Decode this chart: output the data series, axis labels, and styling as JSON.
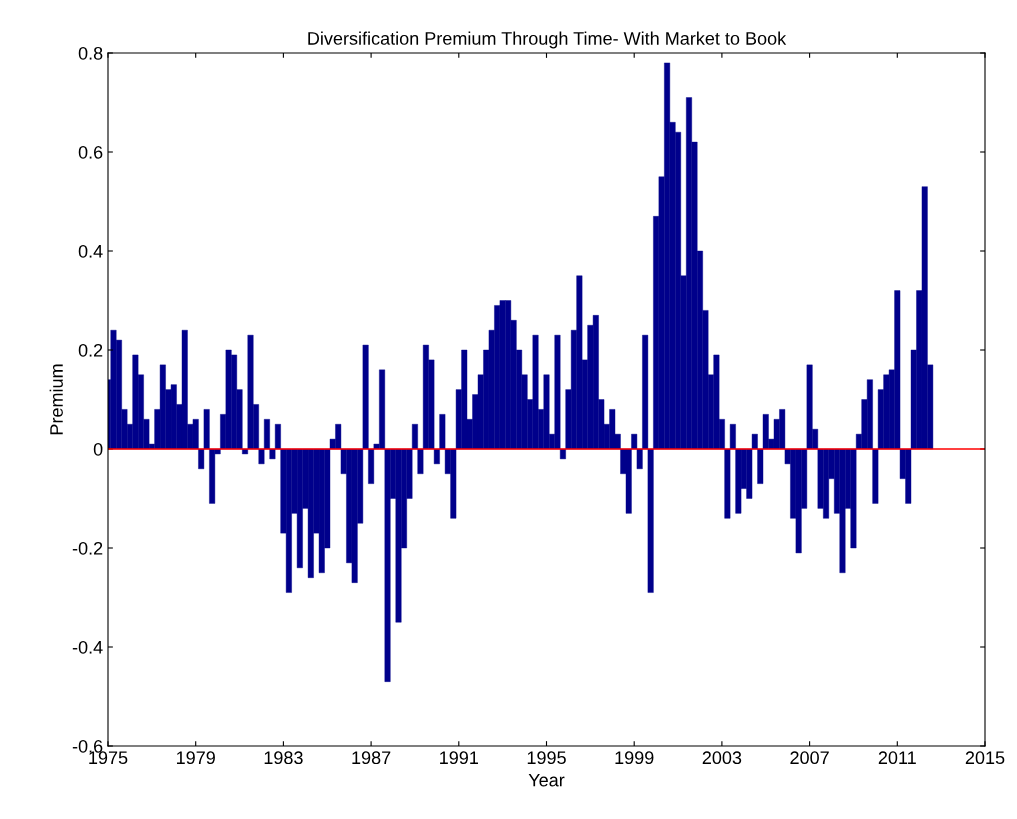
{
  "chart_data": {
    "type": "bar",
    "title": "Diversification Premium Through Time- With Market to Book",
    "xlabel": "Year",
    "ylabel": "Premium",
    "x": [
      1975.0,
      1975.25,
      1975.5,
      1975.75,
      1976.0,
      1976.25,
      1976.5,
      1976.75,
      1977.0,
      1977.25,
      1977.5,
      1977.75,
      1978.0,
      1978.25,
      1978.5,
      1978.75,
      1979.0,
      1979.25,
      1979.5,
      1979.75,
      1980.0,
      1980.25,
      1980.5,
      1980.75,
      1981.0,
      1981.25,
      1981.5,
      1981.75,
      1982.0,
      1982.25,
      1982.5,
      1982.75,
      1983.0,
      1983.25,
      1983.5,
      1983.75,
      1984.0,
      1984.25,
      1984.5,
      1984.75,
      1985.0,
      1985.25,
      1985.5,
      1985.75,
      1986.0,
      1986.25,
      1986.5,
      1986.75,
      1987.0,
      1987.25,
      1987.5,
      1987.75,
      1988.0,
      1988.25,
      1988.5,
      1988.75,
      1989.0,
      1989.25,
      1989.5,
      1989.75,
      1990.0,
      1990.25,
      1990.5,
      1990.75,
      1991.0,
      1991.25,
      1991.5,
      1991.75,
      1992.0,
      1992.25,
      1992.5,
      1992.75,
      1993.0,
      1993.25,
      1993.5,
      1993.75,
      1994.0,
      1994.25,
      1994.5,
      1994.75,
      1995.0,
      1995.25,
      1995.5,
      1995.75,
      1996.0,
      1996.25,
      1996.5,
      1996.75,
      1997.0,
      1997.25,
      1997.5,
      1997.75,
      1998.0,
      1998.25,
      1998.5,
      1998.75,
      1999.0,
      1999.25,
      1999.5,
      1999.75,
      2000.0,
      2000.25,
      2000.5,
      2000.75,
      2001.0,
      2001.25,
      2001.5,
      2001.75,
      2002.0,
      2002.25,
      2002.5,
      2002.75,
      2003.0,
      2003.25,
      2003.5,
      2003.75,
      2004.0,
      2004.25,
      2004.5,
      2004.75,
      2005.0,
      2005.25,
      2005.5,
      2005.75,
      2006.0,
      2006.25,
      2006.5,
      2006.75,
      2007.0,
      2007.25,
      2007.5,
      2007.75,
      2008.0,
      2008.25,
      2008.5,
      2008.75,
      2009.0,
      2009.25,
      2009.5,
      2009.75,
      2010.0,
      2010.25,
      2010.5,
      2010.75,
      2011.0,
      2011.25,
      2011.5,
      2011.75,
      2012.0,
      2012.25,
      2012.5
    ],
    "series": [
      {
        "color": "#00008b",
        "values": [
          0.14,
          0.24,
          0.22,
          0.08,
          0.05,
          0.19,
          0.15,
          0.06,
          0.01,
          0.08,
          0.17,
          0.12,
          0.13,
          0.09,
          0.24,
          0.05,
          0.06,
          -0.04,
          0.08,
          -0.11,
          -0.01,
          0.07,
          0.2,
          0.19,
          0.12,
          -0.01,
          0.23,
          0.09,
          -0.03,
          0.06,
          -0.02,
          0.05,
          -0.17,
          -0.29,
          -0.13,
          -0.24,
          -0.12,
          -0.26,
          -0.17,
          -0.25,
          -0.2,
          0.02,
          0.05,
          -0.05,
          -0.23,
          -0.27,
          -0.15,
          0.21,
          -0.07,
          0.01,
          0.16,
          -0.47,
          -0.1,
          -0.35,
          -0.2,
          -0.1,
          0.05,
          -0.05,
          0.21,
          0.18,
          -0.03,
          0.07,
          -0.05,
          -0.14,
          0.12,
          0.2,
          0.06,
          0.11,
          0.15,
          0.2,
          0.24,
          0.29,
          0.3,
          0.3,
          0.26,
          0.2,
          0.15,
          0.1,
          0.23,
          0.08,
          0.15,
          0.03,
          0.23,
          -0.02,
          0.12,
          0.24,
          0.35,
          0.18,
          0.25,
          0.27,
          0.1,
          0.05,
          0.08,
          0.03,
          -0.05,
          -0.13,
          0.03,
          -0.04,
          0.23,
          -0.29,
          0.47,
          0.55,
          0.78,
          0.66,
          0.64,
          0.35,
          0.71,
          0.62,
          0.4,
          0.28,
          0.15,
          0.19,
          0.06,
          -0.14,
          0.05,
          -0.13,
          -0.08,
          -0.1,
          0.03,
          -0.07,
          0.07,
          0.02,
          0.06,
          0.08,
          -0.03,
          -0.14,
          -0.21,
          -0.12,
          0.17,
          0.04,
          -0.12,
          -0.14,
          -0.06,
          -0.13,
          -0.25,
          -0.12,
          -0.2,
          0.03,
          0.1,
          0.14,
          -0.11,
          0.12,
          0.15,
          0.16,
          0.32,
          -0.06,
          -0.11,
          0.2,
          0.32,
          0.53,
          0.17
        ]
      }
    ],
    "xlim": [
      1975,
      2015
    ],
    "xticks": [
      1975,
      1979,
      1983,
      1987,
      1991,
      1995,
      1999,
      2003,
      2007,
      2011,
      2015
    ],
    "ylim": [
      -0.6,
      0.8
    ],
    "yticks": [
      -0.6,
      -0.4,
      -0.2,
      0,
      0.2,
      0.4,
      0.6,
      0.8
    ],
    "ref_lines": [
      {
        "axis": "y",
        "value": 0,
        "color": "#ff0000"
      }
    ],
    "grid": false,
    "legend": false
  }
}
